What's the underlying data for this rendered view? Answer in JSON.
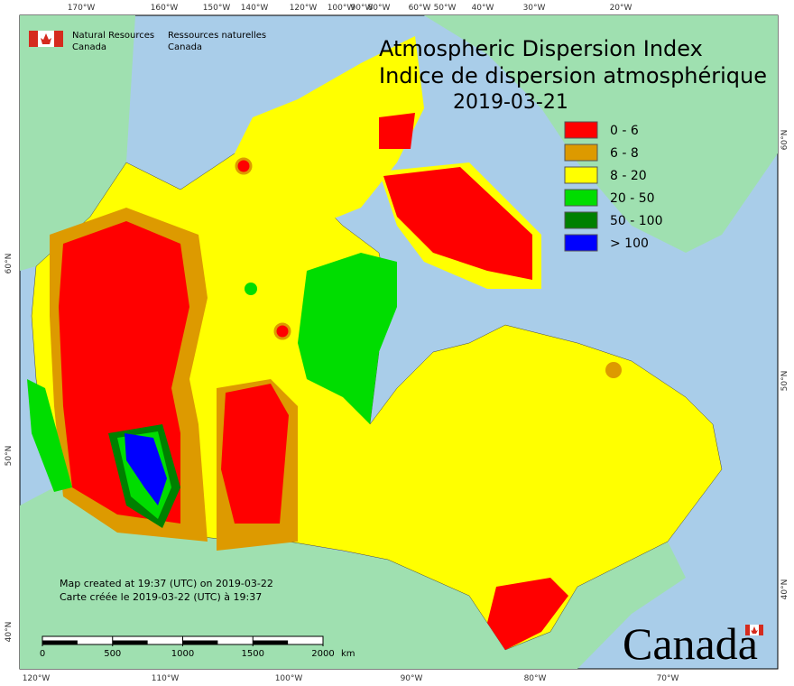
{
  "agency": {
    "en": [
      "Natural Resources",
      "Canada"
    ],
    "fr": [
      "Ressources naturelles",
      "Canada"
    ]
  },
  "title": [
    "Atmospheric Dispersion Index",
    "Indice de dispersion atmosphérique"
  ],
  "date": "2019-03-21",
  "legend": [
    {
      "label": "0 - 6",
      "color": "#ff0000"
    },
    {
      "label": "6 - 8",
      "color": "#dd9a00"
    },
    {
      "label": "8 - 20",
      "color": "#ffff00"
    },
    {
      "label": "20 - 50",
      "color": "#00dd00"
    },
    {
      "label": "50 - 100",
      "color": "#008000"
    },
    {
      "label": "> 100",
      "color": "#0000ff"
    }
  ],
  "notes": [
    "Map created at 19:37 (UTC) on 2019-03-22",
    "Carte créée le 2019-03-22 (UTC) à 19:37"
  ],
  "scale_bar": {
    "ticks": [
      0,
      500,
      1000,
      1500,
      2000
    ],
    "unit": "km"
  },
  "graticule": {
    "top": [
      "170°W",
      "160°W",
      "150°W",
      "140°W",
      "120°W",
      "100°W",
      "90°W",
      "80°W",
      "60°W",
      "50°W",
      "40°W",
      "30°W",
      "20°W"
    ],
    "bottom": [
      "120°W",
      "110°W",
      "100°W",
      "90°W",
      "80°W",
      "70°W"
    ],
    "left": [
      "60°N",
      "50°N",
      "40°N"
    ],
    "right": [
      "60°N",
      "50°N",
      "40°N"
    ]
  },
  "wordmark": "Canada"
}
